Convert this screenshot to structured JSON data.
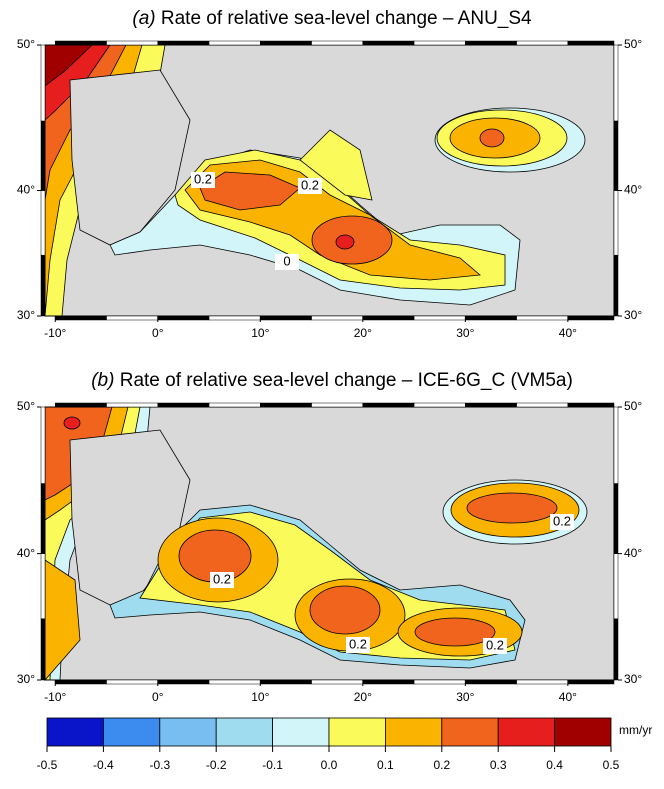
{
  "maps": [
    {
      "label": "(a)",
      "title": "Rate of relative sea-level change – ANU_S4",
      "contour_labels": [
        "0.2",
        "0.2",
        "0"
      ]
    },
    {
      "label": "(b)",
      "title": "Rate of relative sea-level change – ICE-6G_C (VM5a)",
      "contour_labels": [
        "0.2",
        "0.2",
        "0.2",
        "0.2"
      ]
    }
  ],
  "lon_range": [
    -11,
    44.5
  ],
  "lat_range": [
    30,
    50
  ],
  "lon_ticks": [
    {
      "value": -10,
      "label": "-10°"
    },
    {
      "value": 0,
      "label": "0°"
    },
    {
      "value": 10,
      "label": "10°"
    },
    {
      "value": 20,
      "label": "20°"
    },
    {
      "value": 30,
      "label": "30°"
    },
    {
      "value": 40,
      "label": "40°"
    }
  ],
  "lat_ticks": [
    {
      "value": 30,
      "label": "30°"
    },
    {
      "value": 40,
      "label": "40°"
    },
    {
      "value": 50,
      "label": "50°"
    }
  ],
  "colorbar": {
    "unit": "mm/yr",
    "bounds": [
      -0.5,
      -0.4,
      -0.3,
      -0.2,
      -0.1,
      {
        "value": 0,
        "label": "0.0"
      },
      0.1,
      0.2,
      0.3,
      0.4,
      0.5
    ],
    "colors": [
      "#0a14c8",
      "#3c8cf0",
      "#78bef0",
      "#a0dcf0",
      "#d2f5fa",
      "#fafa5a",
      "#fab400",
      "#f0641e",
      "#e61e1e",
      "#a00000"
    ]
  }
}
